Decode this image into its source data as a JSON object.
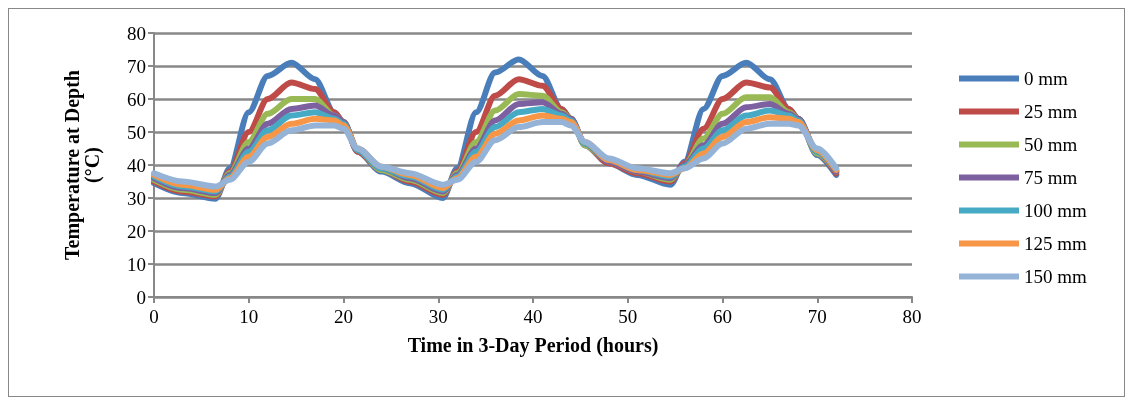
{
  "chart_data": {
    "type": "line",
    "xlabel": "Time in 3-Day Period (hours)",
    "ylabel": "Temperature at Depth (°C)",
    "x": [
      0,
      3,
      6.5,
      8,
      10,
      12,
      14.5,
      17,
      19,
      20,
      21.5,
      24,
      27,
      30.5,
      32,
      34,
      36,
      38.5,
      41,
      43,
      44,
      45.5,
      48,
      51,
      54.5,
      56,
      58,
      60,
      62.5,
      65,
      67,
      68,
      70,
      72
    ],
    "xlim": [
      0,
      80
    ],
    "xticks": [
      0,
      10,
      20,
      30,
      40,
      50,
      60,
      70,
      80
    ],
    "ylim": [
      0,
      80
    ],
    "yticks": [
      0,
      10,
      20,
      30,
      40,
      50,
      60,
      70,
      80
    ],
    "grid": "y",
    "legend": "right",
    "marker": "none",
    "line_style": "solid",
    "series": [
      {
        "name": "0 mm",
        "color": "#4a7ebb",
        "values": [
          34.5,
          31.5,
          29.8,
          39,
          56,
          67,
          71,
          66,
          56,
          53,
          44,
          38,
          34.5,
          30,
          39,
          56,
          68,
          72,
          67,
          57,
          54,
          46,
          40.5,
          37,
          34,
          41,
          57,
          67,
          71,
          66,
          57,
          54,
          43,
          37
        ]
      },
      {
        "name": "25 mm",
        "color": "#be4b48",
        "values": [
          35,
          32,
          30.5,
          38,
          50,
          60,
          65,
          63,
          56,
          53,
          44,
          38.5,
          35,
          31,
          38,
          50,
          61,
          66,
          64,
          57,
          54,
          46,
          40.5,
          37.5,
          35,
          40.5,
          51,
          60,
          65,
          63.5,
          57,
          54,
          43.5,
          37.5
        ]
      },
      {
        "name": "50 mm",
        "color": "#98b954",
        "values": [
          35.5,
          32.5,
          31,
          37.5,
          47,
          55.5,
          60,
          60,
          55,
          53,
          44.5,
          38.5,
          35.5,
          31.5,
          37.5,
          47,
          56.5,
          61.5,
          61,
          56,
          54,
          46,
          41,
          38,
          35.5,
          40,
          48,
          55.5,
          60.5,
          60.5,
          56,
          54,
          43.5,
          38
        ]
      },
      {
        "name": "75 mm",
        "color": "#7d60a0",
        "values": [
          36,
          33,
          31.5,
          37,
          45,
          52.5,
          57,
          58,
          55,
          53,
          44.5,
          39,
          36,
          32,
          37,
          45,
          53.5,
          58.5,
          59,
          55.5,
          54,
          46.5,
          41,
          38,
          36,
          40,
          46,
          52.5,
          57.5,
          58.5,
          55.5,
          54,
          44,
          38
        ]
      },
      {
        "name": "100 mm",
        "color": "#46aac5",
        "values": [
          36.5,
          33.5,
          32,
          36.5,
          44,
          50.5,
          55,
          56,
          54,
          52.5,
          44.5,
          39,
          36.5,
          32.5,
          36.5,
          44,
          51.5,
          56,
          57,
          55,
          53.5,
          46.5,
          41.5,
          38.5,
          36.5,
          39.5,
          45,
          50.5,
          55,
          56.5,
          55,
          53.5,
          44,
          38.5
        ]
      },
      {
        "name": "125 mm",
        "color": "#f79646",
        "values": [
          37,
          34,
          32.5,
          36,
          42.5,
          48.5,
          52.5,
          54,
          53.5,
          52,
          45,
          39.5,
          37,
          33,
          36,
          42.5,
          49.5,
          53.5,
          55,
          54,
          53,
          47,
          41.5,
          38.5,
          37,
          39,
          43.5,
          48.5,
          53,
          54.5,
          54,
          53,
          44.5,
          38.5
        ]
      },
      {
        "name": "150 mm",
        "color": "#95b3d7",
        "values": [
          37.5,
          35,
          33.5,
          35.5,
          41,
          46.5,
          50.5,
          52,
          52,
          51,
          45,
          39.5,
          37.5,
          34,
          35.5,
          41,
          47.5,
          51.5,
          53,
          53,
          52,
          47,
          42,
          39,
          37.5,
          39,
          42,
          46.5,
          51,
          52.5,
          52.5,
          52,
          45,
          39
        ]
      }
    ]
  }
}
